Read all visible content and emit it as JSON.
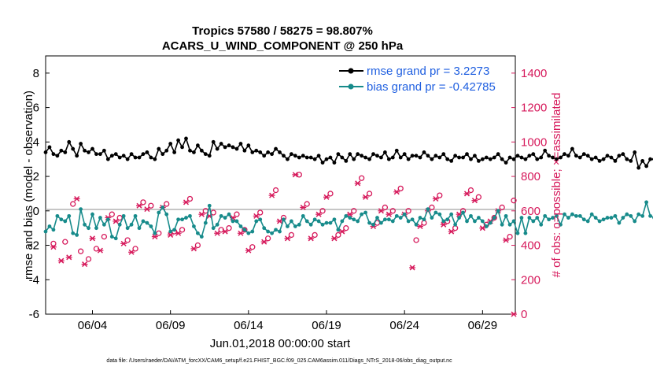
{
  "chart_data": {
    "type": "line",
    "title": "Tropics 57580 / 58275 = 98.807%",
    "subtitle": "ACARS_U_WIND_COMPONENT @ 250 hPa",
    "xlabel": "Jun.01,2018 00:00:00 start",
    "ylabel": "rmse and bias (model - observation)",
    "ylabel_right": "# of obs: o=possible; ×=assimilated",
    "footer": "data file: /Users/raeder/DAI/ATM_forcXX/CAM6_setup/f.e21.FHIST_BGC.f09_025.CAM6assim.011/Diags_NTrS_2018-06/obs_diag_output.nc",
    "x_range": [
      0.5,
      30.6
    ],
    "ylim": [
      -6,
      9
    ],
    "ylim_right": [
      0,
      1500
    ],
    "y_ticks": [
      "-6",
      "-4",
      "-2",
      "0",
      "2",
      "4",
      "6",
      "8"
    ],
    "y_ticks_right": [
      "0",
      "200",
      "400",
      "600",
      "800",
      "1000",
      "1200",
      "1400"
    ],
    "x_ticks": [
      {
        "x": 3.5,
        "label": "06/04"
      },
      {
        "x": 8.5,
        "label": "06/09"
      },
      {
        "x": 13.5,
        "label": "06/14"
      },
      {
        "x": 18.5,
        "label": "06/19"
      },
      {
        "x": 23.5,
        "label": "06/24"
      },
      {
        "x": 28.5,
        "label": "06/29"
      }
    ],
    "time_step_days": 0.25,
    "start_day": 0.5,
    "series": [
      {
        "name": "rmse grand pr = 3.2273",
        "color": "#000000",
        "axis": "left",
        "values": [
          3.4,
          3.7,
          3.3,
          3.2,
          3.5,
          3.4,
          4.0,
          3.6,
          3.2,
          3.9,
          3.5,
          3.4,
          3.6,
          3.3,
          3.3,
          3.5,
          3.0,
          3.2,
          3.3,
          3.1,
          3.2,
          3.0,
          3.3,
          3.1,
          3.1,
          3.3,
          3.4,
          3.1,
          3.0,
          3.6,
          3.3,
          3.5,
          3.9,
          3.4,
          4.1,
          3.7,
          4.2,
          3.5,
          3.4,
          3.8,
          3.5,
          3.3,
          3.2,
          4.0,
          3.6,
          3.9,
          3.7,
          3.8,
          3.7,
          3.6,
          3.9,
          3.5,
          3.8,
          3.4,
          3.5,
          3.4,
          3.2,
          3.4,
          3.3,
          3.6,
          3.4,
          3.2,
          3.0,
          3.3,
          3.2,
          3.1,
          3.2,
          3.1,
          3.1,
          3.0,
          3.2,
          2.8,
          3.0,
          3.1,
          2.8,
          3.3,
          3.1,
          2.9,
          3.3,
          3.0,
          3.3,
          3.2,
          3.1,
          3.0,
          3.3,
          3.2,
          3.1,
          3.4,
          3.0,
          3.1,
          3.5,
          3.1,
          3.3,
          3.0,
          3.2,
          3.2,
          3.1,
          3.4,
          3.2,
          3.0,
          3.2,
          3.1,
          3.3,
          3.0,
          2.9,
          3.2,
          3.1,
          3.1,
          3.3,
          3.0,
          3.2,
          2.9,
          3.0,
          3.1,
          3.0,
          3.1,
          3.3,
          3.0,
          2.8,
          3.1,
          3.0,
          3.2,
          3.1,
          3.0,
          3.2,
          3.3,
          3.0,
          3.1,
          3.5,
          3.2,
          3.1,
          3.0,
          3.1,
          3.3,
          3.2,
          3.6,
          3.2,
          3.1,
          3.3,
          3.2,
          3.0,
          3.1,
          2.9,
          3.0,
          3.2,
          3.1,
          2.9,
          3.2,
          3.3,
          3.0,
          2.9,
          3.4,
          2.5,
          2.9,
          2.6,
          3.0,
          3.0,
          3.3,
          3.0,
          3.2,
          2.8
        ]
      },
      {
        "name": "bias grand pr = -0.42785",
        "color": "#178b8b",
        "axis": "left",
        "values": [
          -1.2,
          -0.9,
          -1.1,
          -0.3,
          -0.5,
          -0.6,
          -0.3,
          -1.3,
          -1.4,
          0.1,
          -0.8,
          -1.0,
          -0.2,
          -1.0,
          -0.4,
          -0.8,
          -0.5,
          -1.5,
          -1.6,
          -0.8,
          -0.3,
          -1.0,
          -0.8,
          -0.3,
          -1.0,
          -0.6,
          -0.7,
          -0.9,
          -1.3,
          -0.1,
          0.2,
          -0.2,
          -1.2,
          -1.1,
          -0.5,
          -0.5,
          -0.4,
          -0.3,
          -0.9,
          -1.3,
          -1.5,
          -0.7,
          0.3,
          -1.0,
          -0.8,
          -0.3,
          -0.4,
          -0.2,
          -0.6,
          -0.6,
          -0.9,
          -1.1,
          -1.3,
          -1.2,
          -0.6,
          -0.5,
          -1.0,
          -1.2,
          -1.3,
          -1.1,
          -1.2,
          -0.5,
          -0.9,
          -0.6,
          -0.9,
          -0.8,
          -0.3,
          -0.6,
          -0.8,
          -0.5,
          -0.6,
          -0.8,
          -0.7,
          -0.7,
          -0.5,
          -1.1,
          -0.6,
          -0.3,
          -0.4,
          -0.5,
          -0.6,
          -0.2,
          -0.1,
          -0.7,
          -0.8,
          -0.4,
          -0.7,
          -0.5,
          -0.5,
          -0.6,
          -0.3,
          -0.4,
          -0.2,
          -0.6,
          -0.5,
          -0.8,
          -0.4,
          -0.5,
          0.1,
          -0.4,
          -0.1,
          -0.2,
          -0.6,
          -0.5,
          -0.2,
          -0.8,
          -0.4,
          -0.1,
          -0.6,
          -0.3,
          -0.6,
          -0.4,
          -0.6,
          -0.9,
          -0.7,
          -0.4,
          0.0,
          -0.8,
          -0.3,
          -0.8,
          -0.6,
          -1.3,
          -0.4,
          -1.3,
          -0.4,
          -0.6,
          -0.4,
          -0.8,
          -0.3,
          -0.5,
          -0.4,
          -0.3,
          -0.8,
          -0.2,
          -0.4,
          -0.2,
          -0.3,
          -0.3,
          -0.5,
          -0.6,
          -0.2,
          -0.4,
          -0.6,
          -0.5,
          -0.4,
          -0.4,
          -0.3,
          -0.7,
          -0.4,
          -0.2,
          -0.3,
          -0.6,
          -0.2,
          -0.3,
          0.5,
          -0.3,
          -0.4,
          -0.3,
          -0.5,
          -0.3,
          0.3,
          -0.8
        ]
      }
    ],
    "obs_possible": [
      [
        1.0,
        410
      ],
      [
        1.75,
        420
      ],
      [
        2.25,
        640
      ],
      [
        2.75,
        365
      ],
      [
        3.25,
        320
      ],
      [
        3.75,
        380
      ],
      [
        4.25,
        450
      ],
      [
        4.75,
        580
      ],
      [
        5.25,
        560
      ],
      [
        5.75,
        430
      ],
      [
        6.25,
        380
      ],
      [
        6.75,
        650
      ],
      [
        7.25,
        630
      ],
      [
        7.75,
        470
      ],
      [
        8.25,
        640
      ],
      [
        8.75,
        480
      ],
      [
        9.25,
        490
      ],
      [
        9.75,
        670
      ],
      [
        10.25,
        400
      ],
      [
        10.75,
        600
      ],
      [
        11.25,
        590
      ],
      [
        11.75,
        490
      ],
      [
        12.25,
        500
      ],
      [
        12.75,
        580
      ],
      [
        13.25,
        490
      ],
      [
        13.75,
        390
      ],
      [
        14.25,
        590
      ],
      [
        14.75,
        440
      ],
      [
        15.25,
        720
      ],
      [
        15.75,
        560
      ],
      [
        16.25,
        460
      ],
      [
        16.75,
        810
      ],
      [
        17.25,
        640
      ],
      [
        17.75,
        460
      ],
      [
        18.25,
        600
      ],
      [
        18.75,
        700
      ],
      [
        19.25,
        460
      ],
      [
        19.75,
        500
      ],
      [
        20.25,
        600
      ],
      [
        20.75,
        790
      ],
      [
        21.25,
        700
      ],
      [
        21.75,
        530
      ],
      [
        22.25,
        620
      ],
      [
        22.75,
        600
      ],
      [
        23.25,
        730
      ],
      [
        23.75,
        600
      ],
      [
        24.25,
        430
      ],
      [
        24.75,
        530
      ],
      [
        25.25,
        620
      ],
      [
        25.75,
        690
      ],
      [
        26.25,
        540
      ],
      [
        26.75,
        500
      ],
      [
        27.25,
        600
      ],
      [
        27.75,
        720
      ],
      [
        28.25,
        680
      ],
      [
        28.75,
        520
      ],
      [
        29.25,
        560
      ],
      [
        29.75,
        620
      ],
      [
        30.25,
        450
      ],
      [
        30.5,
        660
      ]
    ],
    "obs_assimilated": [
      [
        1.0,
        390
      ],
      [
        1.5,
        310
      ],
      [
        2.0,
        330
      ],
      [
        2.5,
        670
      ],
      [
        3.0,
        290
      ],
      [
        3.5,
        440
      ],
      [
        4.0,
        370
      ],
      [
        4.5,
        560
      ],
      [
        5.0,
        540
      ],
      [
        5.5,
        410
      ],
      [
        6.0,
        360
      ],
      [
        6.5,
        630
      ],
      [
        7.0,
        610
      ],
      [
        7.5,
        450
      ],
      [
        8.0,
        620
      ],
      [
        8.5,
        460
      ],
      [
        9.0,
        470
      ],
      [
        9.5,
        650
      ],
      [
        10.0,
        380
      ],
      [
        10.5,
        580
      ],
      [
        11.0,
        570
      ],
      [
        11.5,
        470
      ],
      [
        12.0,
        480
      ],
      [
        12.5,
        560
      ],
      [
        13.0,
        470
      ],
      [
        13.5,
        370
      ],
      [
        14.0,
        570
      ],
      [
        14.5,
        420
      ],
      [
        15.0,
        690
      ],
      [
        15.5,
        540
      ],
      [
        16.0,
        440
      ],
      [
        16.5,
        810
      ],
      [
        17.0,
        620
      ],
      [
        17.5,
        440
      ],
      [
        18.0,
        580
      ],
      [
        18.5,
        680
      ],
      [
        19.0,
        440
      ],
      [
        19.5,
        480
      ],
      [
        20.0,
        580
      ],
      [
        20.5,
        760
      ],
      [
        21.0,
        680
      ],
      [
        21.5,
        510
      ],
      [
        22.0,
        600
      ],
      [
        22.5,
        580
      ],
      [
        23.0,
        710
      ],
      [
        23.5,
        580
      ],
      [
        24.0,
        270
      ],
      [
        24.5,
        510
      ],
      [
        25.0,
        600
      ],
      [
        25.5,
        670
      ],
      [
        26.0,
        520
      ],
      [
        26.5,
        480
      ],
      [
        27.0,
        580
      ],
      [
        27.5,
        700
      ],
      [
        28.0,
        660
      ],
      [
        28.5,
        500
      ],
      [
        29.0,
        540
      ],
      [
        29.5,
        600
      ],
      [
        30.0,
        430
      ],
      [
        30.5,
        0
      ]
    ],
    "obs_color": "#d6195b"
  }
}
